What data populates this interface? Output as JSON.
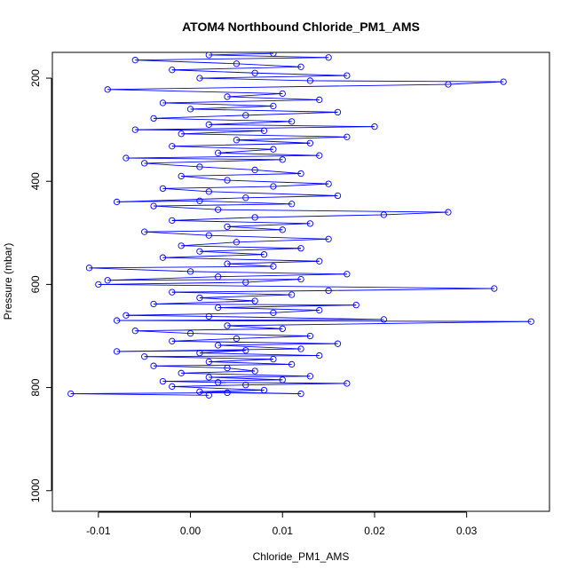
{
  "chart_data": {
    "type": "line",
    "title": "ATOM4 Northbound Chloride_PM1_AMS",
    "xlabel": "Chloride_PM1_AMS",
    "ylabel": "Pressure (mbar)",
    "xlim": [
      -0.015,
      0.039
    ],
    "ylim": [
      1040,
      150
    ],
    "y_reversed": true,
    "x_ticks": [
      -0.01,
      0.0,
      0.01,
      0.02,
      0.03
    ],
    "x_tick_labels": [
      "-0.01",
      "0.00",
      "0.01",
      "0.02",
      "0.03"
    ],
    "y_ticks": [
      200,
      400,
      600,
      800,
      1000
    ],
    "y_tick_labels": [
      "200",
      "400",
      "600",
      "800",
      "1000"
    ],
    "grid": false,
    "legend": "none",
    "color": "#0000ff",
    "marker": "open-circle",
    "series": [
      {
        "points": [
          [
            0.002,
            815
          ],
          [
            -0.013,
            812
          ],
          [
            0.004,
            810
          ],
          [
            0.012,
            812
          ],
          [
            0.001,
            808
          ],
          [
            0.008,
            805
          ],
          [
            -0.002,
            798
          ],
          [
            0.006,
            795
          ],
          [
            0.017,
            792
          ],
          [
            0.003,
            790
          ],
          [
            -0.003,
            788
          ],
          [
            0.01,
            785
          ],
          [
            0.002,
            780
          ],
          [
            0.013,
            778
          ],
          [
            -0.001,
            772
          ],
          [
            0.007,
            768
          ],
          [
            0.004,
            762
          ],
          [
            -0.004,
            758
          ],
          [
            0.011,
            755
          ],
          [
            0.002,
            750
          ],
          [
            0.009,
            745
          ],
          [
            -0.005,
            740
          ],
          [
            0.014,
            738
          ],
          [
            0.001,
            733
          ],
          [
            0.006,
            728
          ],
          [
            -0.008,
            730
          ],
          [
            0.012,
            725
          ],
          [
            0.003,
            718
          ],
          [
            0.016,
            715
          ],
          [
            -0.002,
            710
          ],
          [
            0.005,
            705
          ],
          [
            0.013,
            700
          ],
          [
            0.0,
            695
          ],
          [
            -0.006,
            690
          ],
          [
            0.01,
            686
          ],
          [
            0.004,
            680
          ],
          [
            0.037,
            672
          ],
          [
            -0.008,
            670
          ],
          [
            0.021,
            668
          ],
          [
            0.002,
            662
          ],
          [
            -0.007,
            660
          ],
          [
            0.009,
            655
          ],
          [
            0.014,
            650
          ],
          [
            0.003,
            645
          ],
          [
            0.018,
            640
          ],
          [
            -0.004,
            638
          ],
          [
            0.007,
            632
          ],
          [
            0.001,
            626
          ],
          [
            0.011,
            620
          ],
          [
            -0.002,
            615
          ],
          [
            0.015,
            612
          ],
          [
            0.033,
            608
          ],
          [
            -0.01,
            600
          ],
          [
            0.006,
            596
          ],
          [
            0.012,
            590
          ],
          [
            -0.009,
            592
          ],
          [
            0.003,
            585
          ],
          [
            0.017,
            580
          ],
          [
            0.0,
            575
          ],
          [
            -0.011,
            568
          ],
          [
            0.009,
            565
          ],
          [
            0.004,
            560
          ],
          [
            0.014,
            555
          ],
          [
            -0.003,
            548
          ],
          [
            0.008,
            542
          ],
          [
            0.001,
            536
          ],
          [
            0.012,
            530
          ],
          [
            -0.001,
            525
          ],
          [
            0.005,
            518
          ],
          [
            0.015,
            512
          ],
          [
            0.002,
            505
          ],
          [
            -0.005,
            498
          ],
          [
            0.01,
            494
          ],
          [
            0.004,
            488
          ],
          [
            0.013,
            482
          ],
          [
            -0.002,
            476
          ],
          [
            0.007,
            470
          ],
          [
            0.021,
            465
          ],
          [
            0.028,
            460
          ],
          [
            0.003,
            455
          ],
          [
            -0.004,
            448
          ],
          [
            0.011,
            444
          ],
          [
            0.001,
            438
          ],
          [
            -0.008,
            440
          ],
          [
            0.006,
            432
          ],
          [
            0.016,
            428
          ],
          [
            0.002,
            420
          ],
          [
            -0.003,
            414
          ],
          [
            0.009,
            410
          ],
          [
            0.015,
            405
          ],
          [
            0.004,
            398
          ],
          [
            -0.001,
            390
          ],
          [
            0.012,
            385
          ],
          [
            0.007,
            378
          ],
          [
            0.001,
            372
          ],
          [
            -0.005,
            365
          ],
          [
            0.01,
            358
          ],
          [
            -0.007,
            355
          ],
          [
            0.014,
            350
          ],
          [
            0.003,
            345
          ],
          [
            0.009,
            338
          ],
          [
            -0.002,
            332
          ],
          [
            0.013,
            326
          ],
          [
            0.005,
            320
          ],
          [
            0.017,
            314
          ],
          [
            -0.001,
            308
          ],
          [
            0.008,
            302
          ],
          [
            -0.006,
            300
          ],
          [
            0.02,
            294
          ],
          [
            0.002,
            290
          ],
          [
            0.011,
            284
          ],
          [
            -0.004,
            278
          ],
          [
            0.006,
            272
          ],
          [
            0.016,
            266
          ],
          [
            0.0,
            260
          ],
          [
            0.009,
            254
          ],
          [
            -0.003,
            248
          ],
          [
            0.014,
            242
          ],
          [
            0.004,
            236
          ],
          [
            0.01,
            230
          ],
          [
            -0.009,
            222
          ],
          [
            0.028,
            212
          ],
          [
            0.034,
            207
          ],
          [
            0.013,
            205
          ],
          [
            0.001,
            200
          ],
          [
            0.017,
            195
          ],
          [
            0.007,
            190
          ],
          [
            -0.002,
            184
          ],
          [
            0.012,
            178
          ],
          [
            0.005,
            172
          ],
          [
            -0.006,
            165
          ],
          [
            0.015,
            160
          ],
          [
            0.002,
            155
          ],
          [
            0.009,
            152
          ]
        ]
      }
    ]
  }
}
